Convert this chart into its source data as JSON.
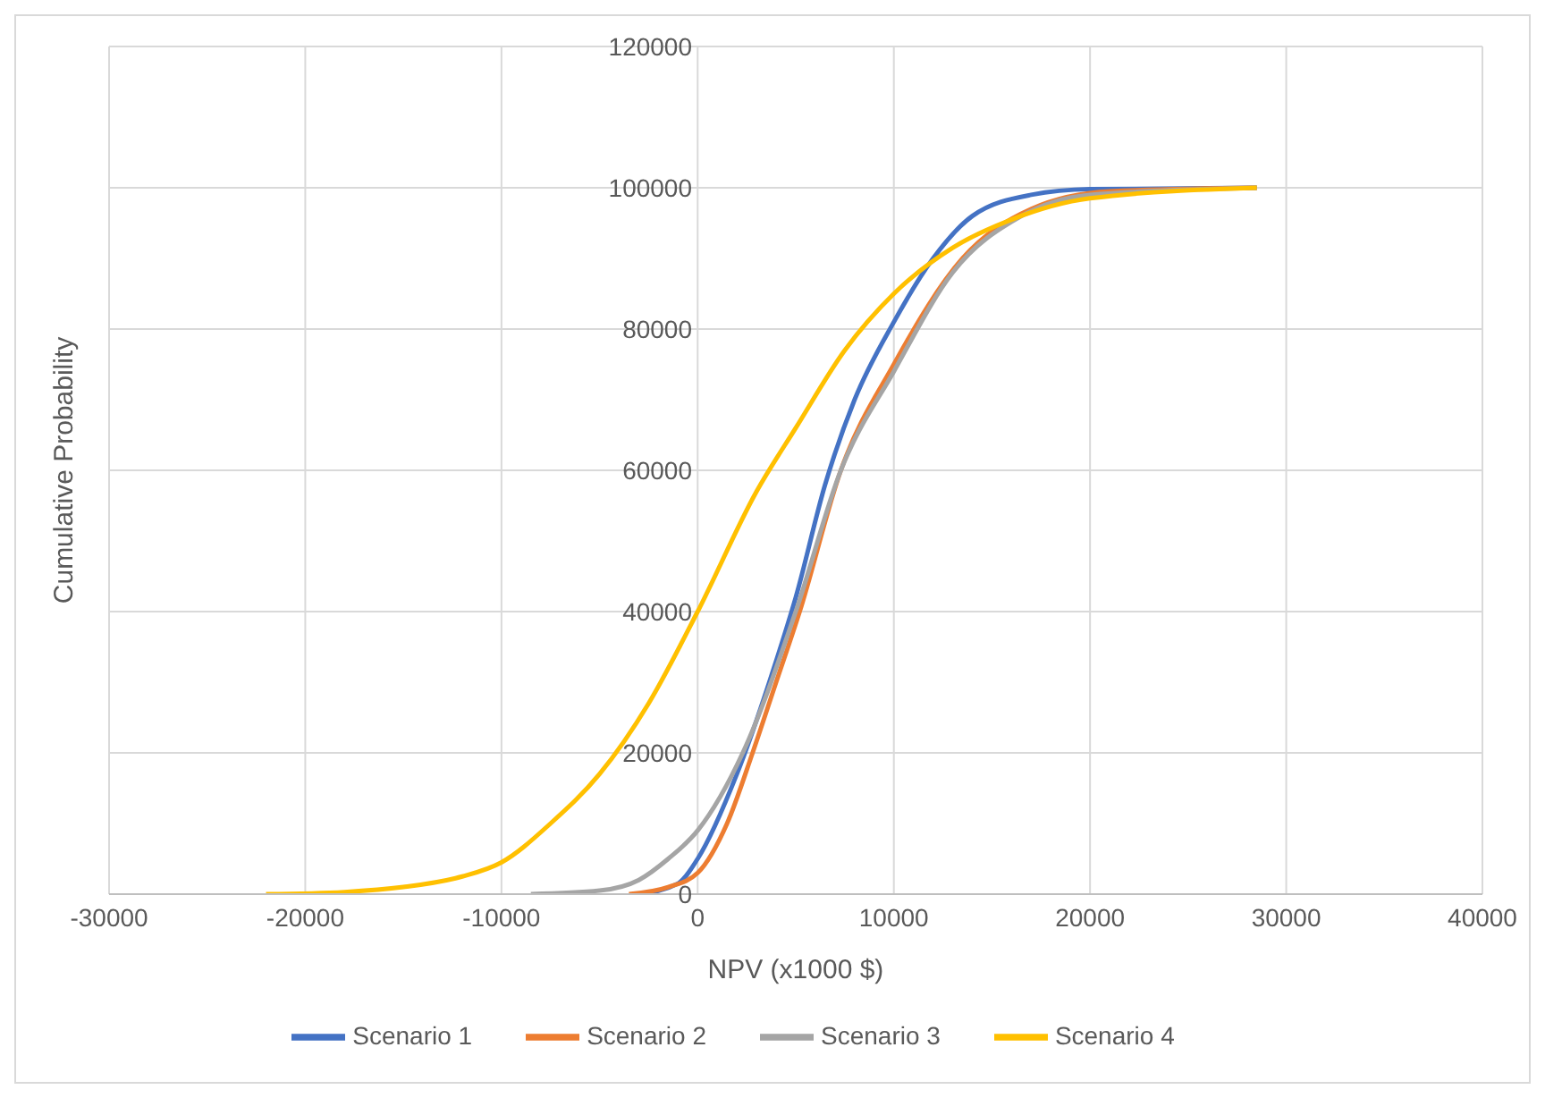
{
  "chart_data": {
    "type": "line",
    "xlabel": "NPV (x1000 $)",
    "ylabel": "Cumulative Probability",
    "xlim": [
      -30000,
      40000
    ],
    "xticks": [
      -30000,
      -20000,
      -10000,
      0,
      10000,
      20000,
      30000,
      40000
    ],
    "ylim": [
      0,
      120000
    ],
    "yticks": [
      0,
      20000,
      40000,
      60000,
      80000,
      100000,
      120000
    ],
    "grid": true,
    "legend": "bottom",
    "marker": "none",
    "line_style": "solid",
    "series": [
      {
        "name": "Scenario 1",
        "color": "#4472c4",
        "x": [
          -3000,
          -1000,
          0,
          2000,
          4000,
          5000,
          6500,
          8000,
          10000,
          12000,
          14000,
          17000,
          20000,
          28500
        ],
        "values": [
          0,
          1500,
          5000,
          17000,
          33000,
          42000,
          58000,
          70000,
          81000,
          90000,
          96000,
          99000,
          99800,
          100000
        ]
      },
      {
        "name": "Scenario 2",
        "color": "#ed7d31",
        "x": [
          -3500,
          -1500,
          0,
          1500,
          2800,
          4000,
          5200,
          7300,
          10000,
          13500,
          17000,
          21000,
          28500
        ],
        "values": [
          0,
          1000,
          3000,
          10000,
          20000,
          30000,
          40000,
          60000,
          75000,
          90000,
          97000,
          99500,
          100000
        ]
      },
      {
        "name": "Scenario 3",
        "color": "#a5a5a5",
        "x": [
          -8500,
          -5000,
          -3000,
          -1500,
          0,
          2300,
          5000,
          7300,
          10000,
          13000,
          16500,
          20000,
          28500
        ],
        "values": [
          0,
          500,
          2000,
          5000,
          9000,
          20000,
          40000,
          60000,
          74000,
          88000,
          96000,
          99000,
          100000
        ]
      },
      {
        "name": "Scenario 4",
        "color": "#ffc000",
        "x": [
          -22000,
          -18000,
          -15000,
          -12000,
          -10000,
          -7500,
          -5000,
          -2500,
          0,
          3000,
          5000,
          7500,
          10000,
          13000,
          16000,
          20000,
          28500
        ],
        "values": [
          0,
          300,
          1000,
          2500,
          4500,
          10000,
          17000,
          27000,
          40000,
          57000,
          66000,
          77000,
          85000,
          91500,
          95500,
          98500,
          100000
        ]
      }
    ]
  }
}
